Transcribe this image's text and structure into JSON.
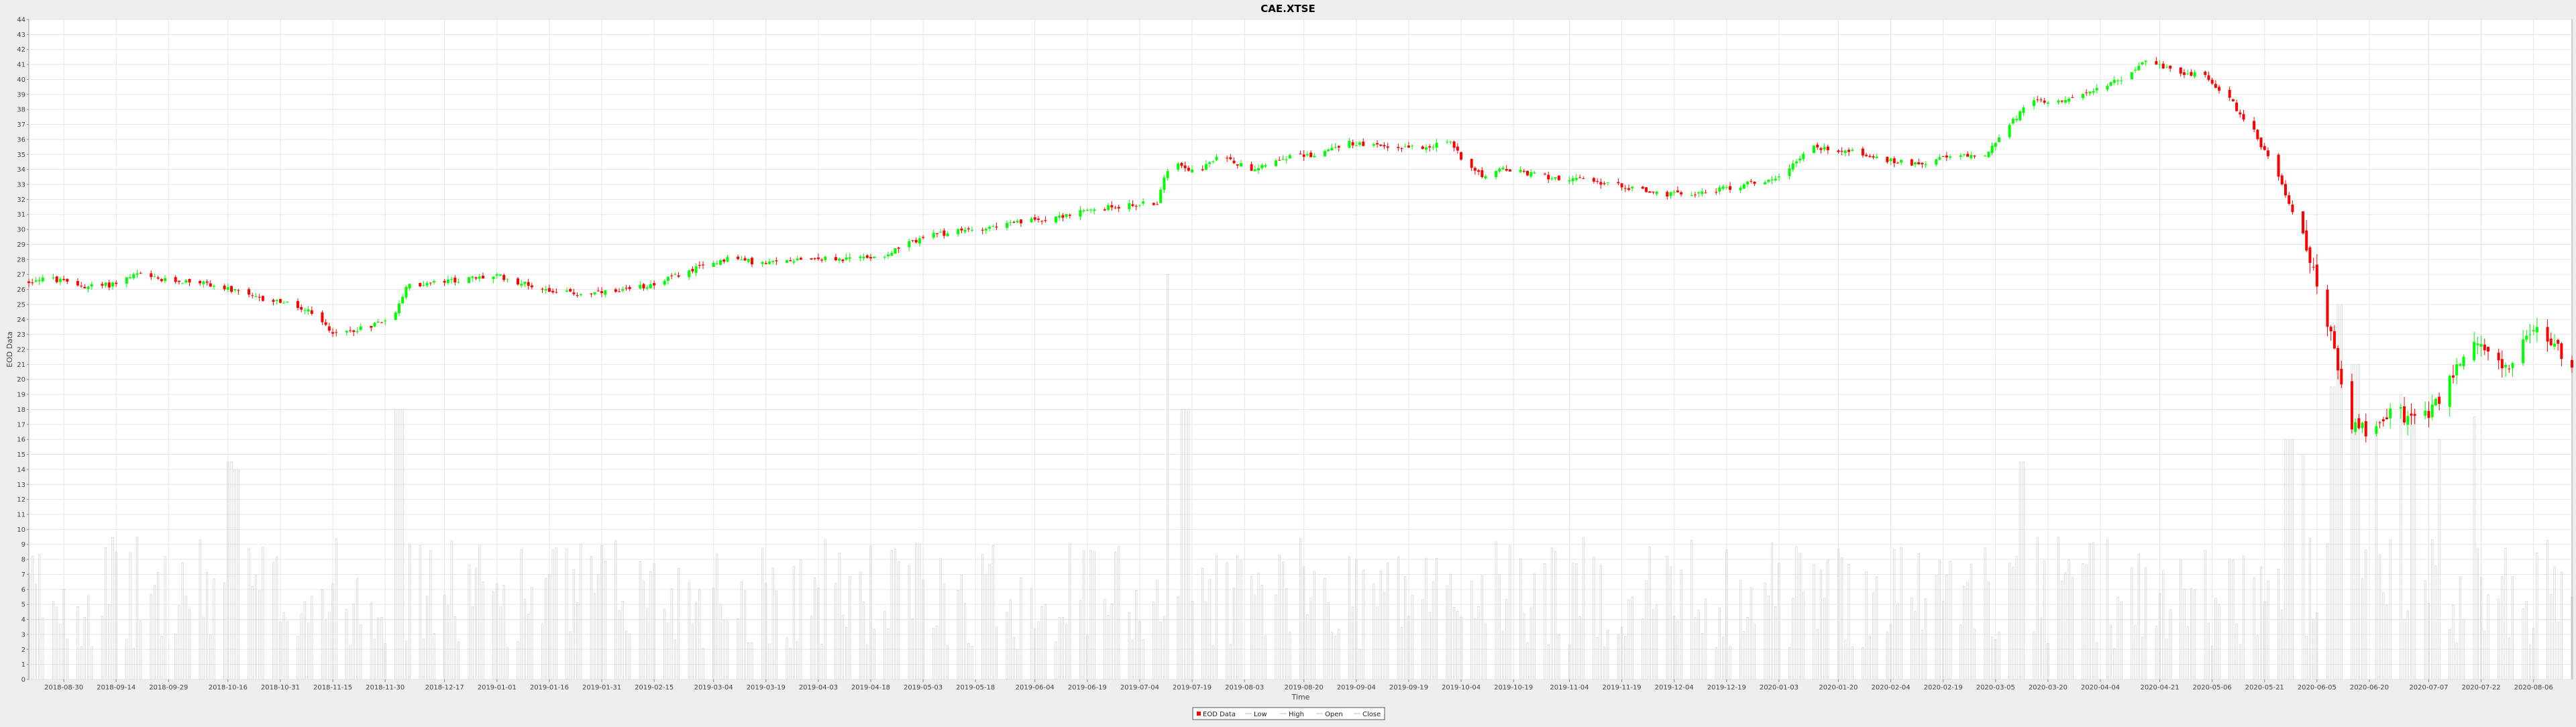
{
  "chart_data": {
    "type": "candlestick",
    "title": "CAE.XTSE",
    "xlabel": "Time",
    "ylabel": "EOD Data",
    "ylim": [
      0,
      44
    ],
    "yticks": [
      0,
      1,
      2,
      3,
      4,
      5,
      6,
      7,
      8,
      9,
      10,
      11,
      12,
      13,
      14,
      15,
      16,
      17,
      18,
      19,
      20,
      21,
      22,
      23,
      24,
      25,
      26,
      27,
      28,
      29,
      30,
      31,
      32,
      33,
      34,
      35,
      36,
      37,
      38,
      39,
      40,
      41,
      42,
      43,
      44
    ],
    "x_range": [
      "2018-08-20",
      "2020-08-17"
    ],
    "x_tick_labels": [
      "2018-08-30",
      "2018-09-14",
      "2018-09-29",
      "2018-10-16",
      "2018-10-31",
      "2018-11-15",
      "2018-11-30",
      "2018-12-17",
      "2019-01-01",
      "2019-01-16",
      "2019-01-31",
      "2019-02-15",
      "2019-03-04",
      "2019-03-19",
      "2019-04-03",
      "2019-04-18",
      "2019-05-03",
      "2019-05-18",
      "2019-06-04",
      "2019-06-19",
      "2019-07-04",
      "2019-07-19",
      "2019-08-03",
      "2019-08-20",
      "2019-09-04",
      "2019-09-19",
      "2019-10-04",
      "2019-10-19",
      "2019-11-04",
      "2019-11-19",
      "2019-12-04",
      "2019-12-19",
      "2020-01-03",
      "2020-01-20",
      "2020-02-04",
      "2020-02-19",
      "2020-03-05",
      "2020-03-20",
      "2020-04-04",
      "2020-04-21",
      "2020-05-06",
      "2020-05-21",
      "2020-06-05",
      "2020-06-20",
      "2020-07-07",
      "2020-07-22",
      "2020-08-06"
    ],
    "grid": true,
    "legend_position": "bottom-center",
    "legend": [
      "EOD Data",
      "Low",
      "High",
      "Open",
      "Close"
    ],
    "colors": {
      "up": "#00ff00",
      "down": "#ff0000",
      "volume": "#d6d6d6",
      "grid": "#e6e6e6",
      "plot_bg": "#ffffff",
      "page_bg": "#eeeeee"
    },
    "price_path": [
      [
        "2018-08-20",
        26.5
      ],
      [
        "2018-08-24",
        26.8
      ],
      [
        "2018-09-05",
        26.2
      ],
      [
        "2018-09-12",
        26.3
      ],
      [
        "2018-09-20",
        27.0
      ],
      [
        "2018-09-27",
        26.6
      ],
      [
        "2018-10-08",
        26.5
      ],
      [
        "2018-10-16",
        26.0
      ],
      [
        "2018-10-24",
        25.4
      ],
      [
        "2018-10-31",
        25.2
      ],
      [
        "2018-11-08",
        24.5
      ],
      [
        "2018-11-16",
        23.0
      ],
      [
        "2018-11-26",
        23.6
      ],
      [
        "2018-12-03",
        24.4
      ],
      [
        "2018-12-06",
        26.2
      ],
      [
        "2018-12-20",
        26.6
      ],
      [
        "2019-01-01",
        26.9
      ],
      [
        "2019-01-07",
        26.5
      ],
      [
        "2019-01-15",
        26.0
      ],
      [
        "2019-01-24",
        25.7
      ],
      [
        "2019-02-05",
        25.8
      ],
      [
        "2019-02-15",
        26.4
      ],
      [
        "2019-02-26",
        27.3
      ],
      [
        "2019-03-08",
        28.1
      ],
      [
        "2019-03-19",
        27.7
      ],
      [
        "2019-03-29",
        28.1
      ],
      [
        "2019-04-10",
        28.0
      ],
      [
        "2019-04-22",
        28.3
      ],
      [
        "2019-05-03",
        29.5
      ],
      [
        "2019-05-17",
        30.0
      ],
      [
        "2019-06-01",
        30.5
      ],
      [
        "2019-06-14",
        31.0
      ],
      [
        "2019-06-26",
        31.5
      ],
      [
        "2019-07-09",
        31.8
      ],
      [
        "2019-07-13",
        34.8
      ],
      [
        "2019-07-20",
        33.8
      ],
      [
        "2019-07-28",
        35.0
      ],
      [
        "2019-08-04",
        34.0
      ],
      [
        "2019-08-14",
        34.8
      ],
      [
        "2019-08-24",
        35.0
      ],
      [
        "2019-09-01",
        35.8
      ],
      [
        "2019-09-11",
        35.5
      ],
      [
        "2019-09-22",
        35.5
      ],
      [
        "2019-10-01",
        35.8
      ],
      [
        "2019-10-05",
        34.5
      ],
      [
        "2019-10-11",
        33.5
      ],
      [
        "2019-10-16",
        34.0
      ],
      [
        "2019-10-29",
        33.5
      ],
      [
        "2019-11-11",
        33.2
      ],
      [
        "2019-11-21",
        32.8
      ],
      [
        "2019-12-01",
        32.3
      ],
      [
        "2019-12-14",
        32.5
      ],
      [
        "2019-12-24",
        33.0
      ],
      [
        "2020-01-03",
        33.5
      ],
      [
        "2020-01-12",
        35.5
      ],
      [
        "2020-01-24",
        35.2
      ],
      [
        "2020-02-02",
        34.6
      ],
      [
        "2020-02-11",
        34.4
      ],
      [
        "2020-02-21",
        34.8
      ],
      [
        "2020-03-02",
        35.0
      ],
      [
        "2020-03-09",
        37.0
      ],
      [
        "2020-03-15",
        38.5
      ],
      [
        "2020-03-29",
        38.8
      ],
      [
        "2020-04-11",
        40.2
      ],
      [
        "2020-04-16",
        41.2
      ],
      [
        "2020-04-25",
        40.6
      ],
      [
        "2020-05-04",
        40.2
      ],
      [
        "2020-05-10",
        39.0
      ],
      [
        "2020-05-18",
        36.5
      ],
      [
        "2020-05-26",
        33.0
      ],
      [
        "2020-06-02",
        29.0
      ],
      [
        "2020-06-09",
        23.0
      ],
      [
        "2020-06-14",
        17.0
      ],
      [
        "2020-06-20",
        16.5
      ],
      [
        "2020-06-27",
        18.0
      ],
      [
        "2020-07-04",
        17.0
      ],
      [
        "2020-07-11",
        19.0
      ],
      [
        "2020-07-19",
        22.5
      ],
      [
        "2020-07-30",
        20.8
      ],
      [
        "2020-08-02",
        22.0
      ],
      [
        "2020-08-08",
        23.5
      ],
      [
        "2020-08-13",
        22.0
      ],
      [
        "2020-08-17",
        21.0
      ]
    ],
    "volume_note": "Background volume bars, values in the same 0–44 scale; mostly 2–11 with spikes up to 27",
    "volume_spikes": [
      [
        "2019-07-13",
        27.0
      ],
      [
        "2019-07-17",
        18.0
      ],
      [
        "2018-12-04",
        18.0
      ],
      [
        "2020-06-10",
        19.5
      ],
      [
        "2020-06-12",
        25.0
      ],
      [
        "2020-06-16",
        21.0
      ],
      [
        "2020-06-21",
        17.0
      ],
      [
        "2020-06-28",
        19.0
      ],
      [
        "2020-07-03",
        18.0
      ],
      [
        "2020-07-11",
        16.0
      ],
      [
        "2020-07-19",
        17.5
      ],
      [
        "2020-03-13",
        14.5
      ],
      [
        "2020-05-28",
        16.0
      ],
      [
        "2020-05-31",
        15.0
      ],
      [
        "2018-10-17",
        14.5
      ],
      [
        "2018-10-19",
        14.0
      ]
    ]
  }
}
